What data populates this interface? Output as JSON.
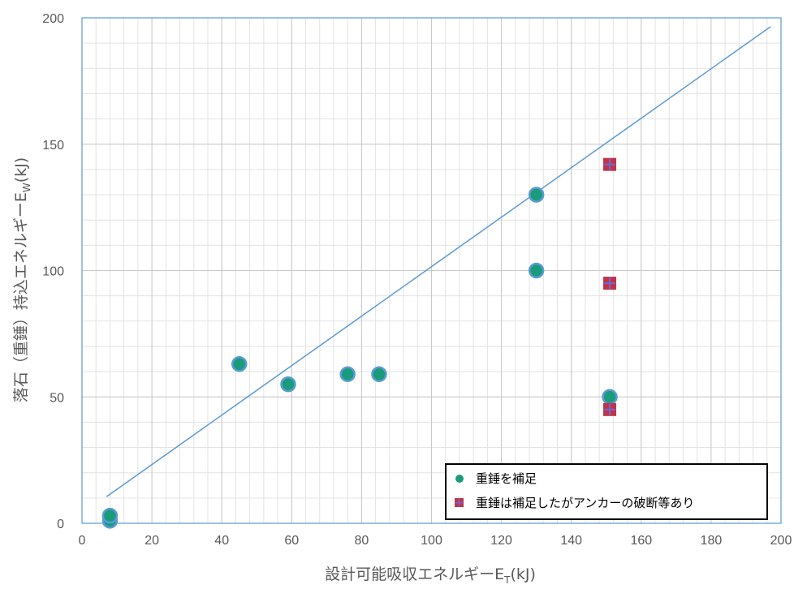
{
  "chart_data": {
    "type": "scatter",
    "xlabel": {
      "main": "設計可能吸収エネルギーE",
      "sub": "T",
      "unit": "(kJ)"
    },
    "ylabel": {
      "main": "落石（重錘）持込エネルギーE",
      "sub": "W",
      "unit": "(kJ)"
    },
    "xlim": [
      0,
      200
    ],
    "ylim": [
      0,
      200
    ],
    "x_ticks": [
      0,
      20,
      40,
      60,
      80,
      100,
      120,
      140,
      160,
      180,
      200
    ],
    "y_ticks": [
      0,
      50,
      100,
      150,
      200
    ],
    "grid": true,
    "legend_position": "bottom-right",
    "series": [
      {
        "name": "重錘を補足",
        "marker": "circle",
        "color": "#1a9b7c",
        "edge_color": "#5b9bd5",
        "x": [
          8,
          8,
          45,
          59,
          76,
          85,
          130,
          130,
          151
        ],
        "y": [
          1,
          3,
          63,
          55,
          59,
          59,
          130,
          100,
          50
        ]
      },
      {
        "name": "重錘は補足したがアンカーの破断等あり",
        "marker": "square",
        "color": "#c0334a",
        "edge_color": "#6b6bd0",
        "x": [
          151,
          151,
          151
        ],
        "y": [
          142,
          95,
          45
        ]
      }
    ],
    "reference_line": {
      "x": [
        7,
        197
      ],
      "y": [
        10.5,
        196.5
      ],
      "color": "#5b9bd5"
    }
  }
}
